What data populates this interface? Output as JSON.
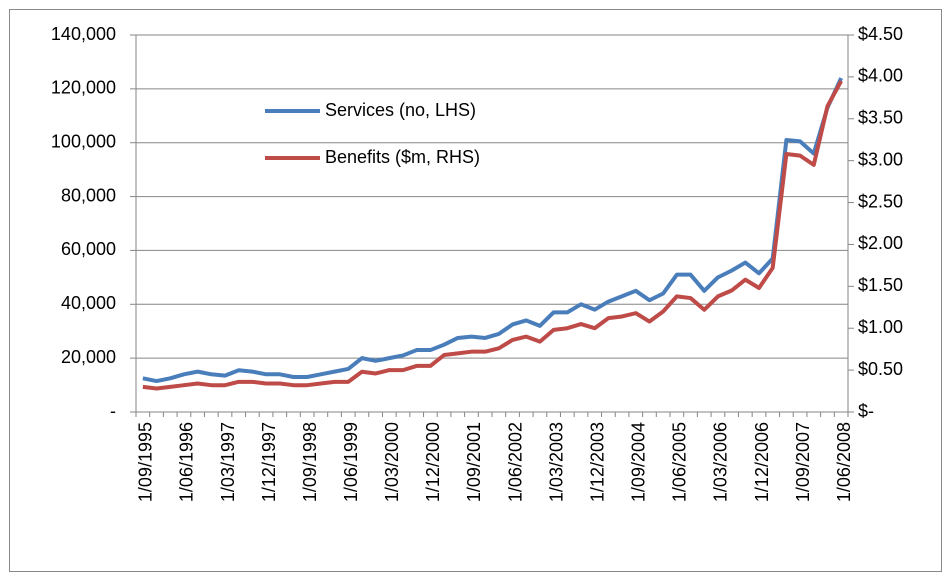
{
  "chart_data": {
    "type": "line",
    "categories": [
      "1/09/1995",
      null,
      null,
      "1/06/1996",
      null,
      null,
      "1/03/1997",
      null,
      null,
      "1/12/1997",
      null,
      null,
      "1/09/1998",
      null,
      null,
      "1/06/1999",
      null,
      null,
      "1/03/2000",
      null,
      null,
      "1/12/2000",
      null,
      null,
      "1/09/2001",
      null,
      null,
      "1/06/2002",
      null,
      null,
      "1/03/2003",
      null,
      null,
      "1/12/2003",
      null,
      null,
      "1/09/2004",
      null,
      null,
      "1/06/2005",
      null,
      null,
      "1/03/2006",
      null,
      null,
      "1/12/2006",
      null,
      null,
      "1/09/2007",
      null,
      null,
      "1/06/2008"
    ],
    "series": [
      {
        "name": "Services (no, LHS)",
        "color": "#4a7ebb",
        "values": [
          12500,
          11500,
          12500,
          14000,
          15000,
          14000,
          13500,
          15500,
          15000,
          14000,
          14000,
          13000,
          13000,
          14000,
          15000,
          16000,
          20000,
          19000,
          20000,
          21000,
          23000,
          23000,
          25000,
          27500,
          28000,
          27500,
          29000,
          32500,
          34000,
          32000,
          37000,
          37000,
          40000,
          38000,
          41000,
          43000,
          45000,
          41500,
          44000,
          51000,
          51000,
          45000,
          50000,
          52500,
          55500,
          51500,
          57000,
          101000,
          100500,
          96000,
          113000,
          124000
        ]
      },
      {
        "name": "Benefits ($m, RHS)",
        "color": "#be4b48",
        "axis": "y2",
        "values": [
          0.3,
          0.28,
          0.3,
          0.32,
          0.34,
          0.32,
          0.32,
          0.36,
          0.36,
          0.34,
          0.34,
          0.32,
          0.32,
          0.34,
          0.36,
          0.36,
          0.48,
          0.46,
          0.5,
          0.5,
          0.55,
          0.55,
          0.68,
          0.7,
          0.72,
          0.72,
          0.76,
          0.86,
          0.9,
          0.84,
          0.98,
          1.0,
          1.05,
          1.0,
          1.12,
          1.14,
          1.18,
          1.08,
          1.2,
          1.38,
          1.36,
          1.22,
          1.38,
          1.45,
          1.58,
          1.48,
          1.72,
          3.08,
          3.06,
          2.95,
          3.65,
          3.95
        ]
      }
    ],
    "ylim": [
      0,
      140000
    ],
    "yticks": [
      {
        "value": 0,
        "label": "-"
      },
      {
        "value": 20000,
        "label": "20,000"
      },
      {
        "value": 40000,
        "label": "40,000"
      },
      {
        "value": 60000,
        "label": "60,000"
      },
      {
        "value": 80000,
        "label": "80,000"
      },
      {
        "value": 100000,
        "label": "100,000"
      },
      {
        "value": 120000,
        "label": "120,000"
      },
      {
        "value": 140000,
        "label": "140,000"
      }
    ],
    "y2lim": [
      0,
      4.5
    ],
    "y2ticks": [
      {
        "value": 0,
        "label": "$-"
      },
      {
        "value": 0.5,
        "label": "$0.50"
      },
      {
        "value": 1,
        "label": "$1.00"
      },
      {
        "value": 1.5,
        "label": "$1.50"
      },
      {
        "value": 2,
        "label": "$2.00"
      },
      {
        "value": 2.5,
        "label": "$2.50"
      },
      {
        "value": 3,
        "label": "$3.00"
      },
      {
        "value": 3.5,
        "label": "$3.50"
      },
      {
        "value": 4,
        "label": "$4.00"
      },
      {
        "value": 4.5,
        "label": "$4.50"
      }
    ],
    "grid": true
  }
}
